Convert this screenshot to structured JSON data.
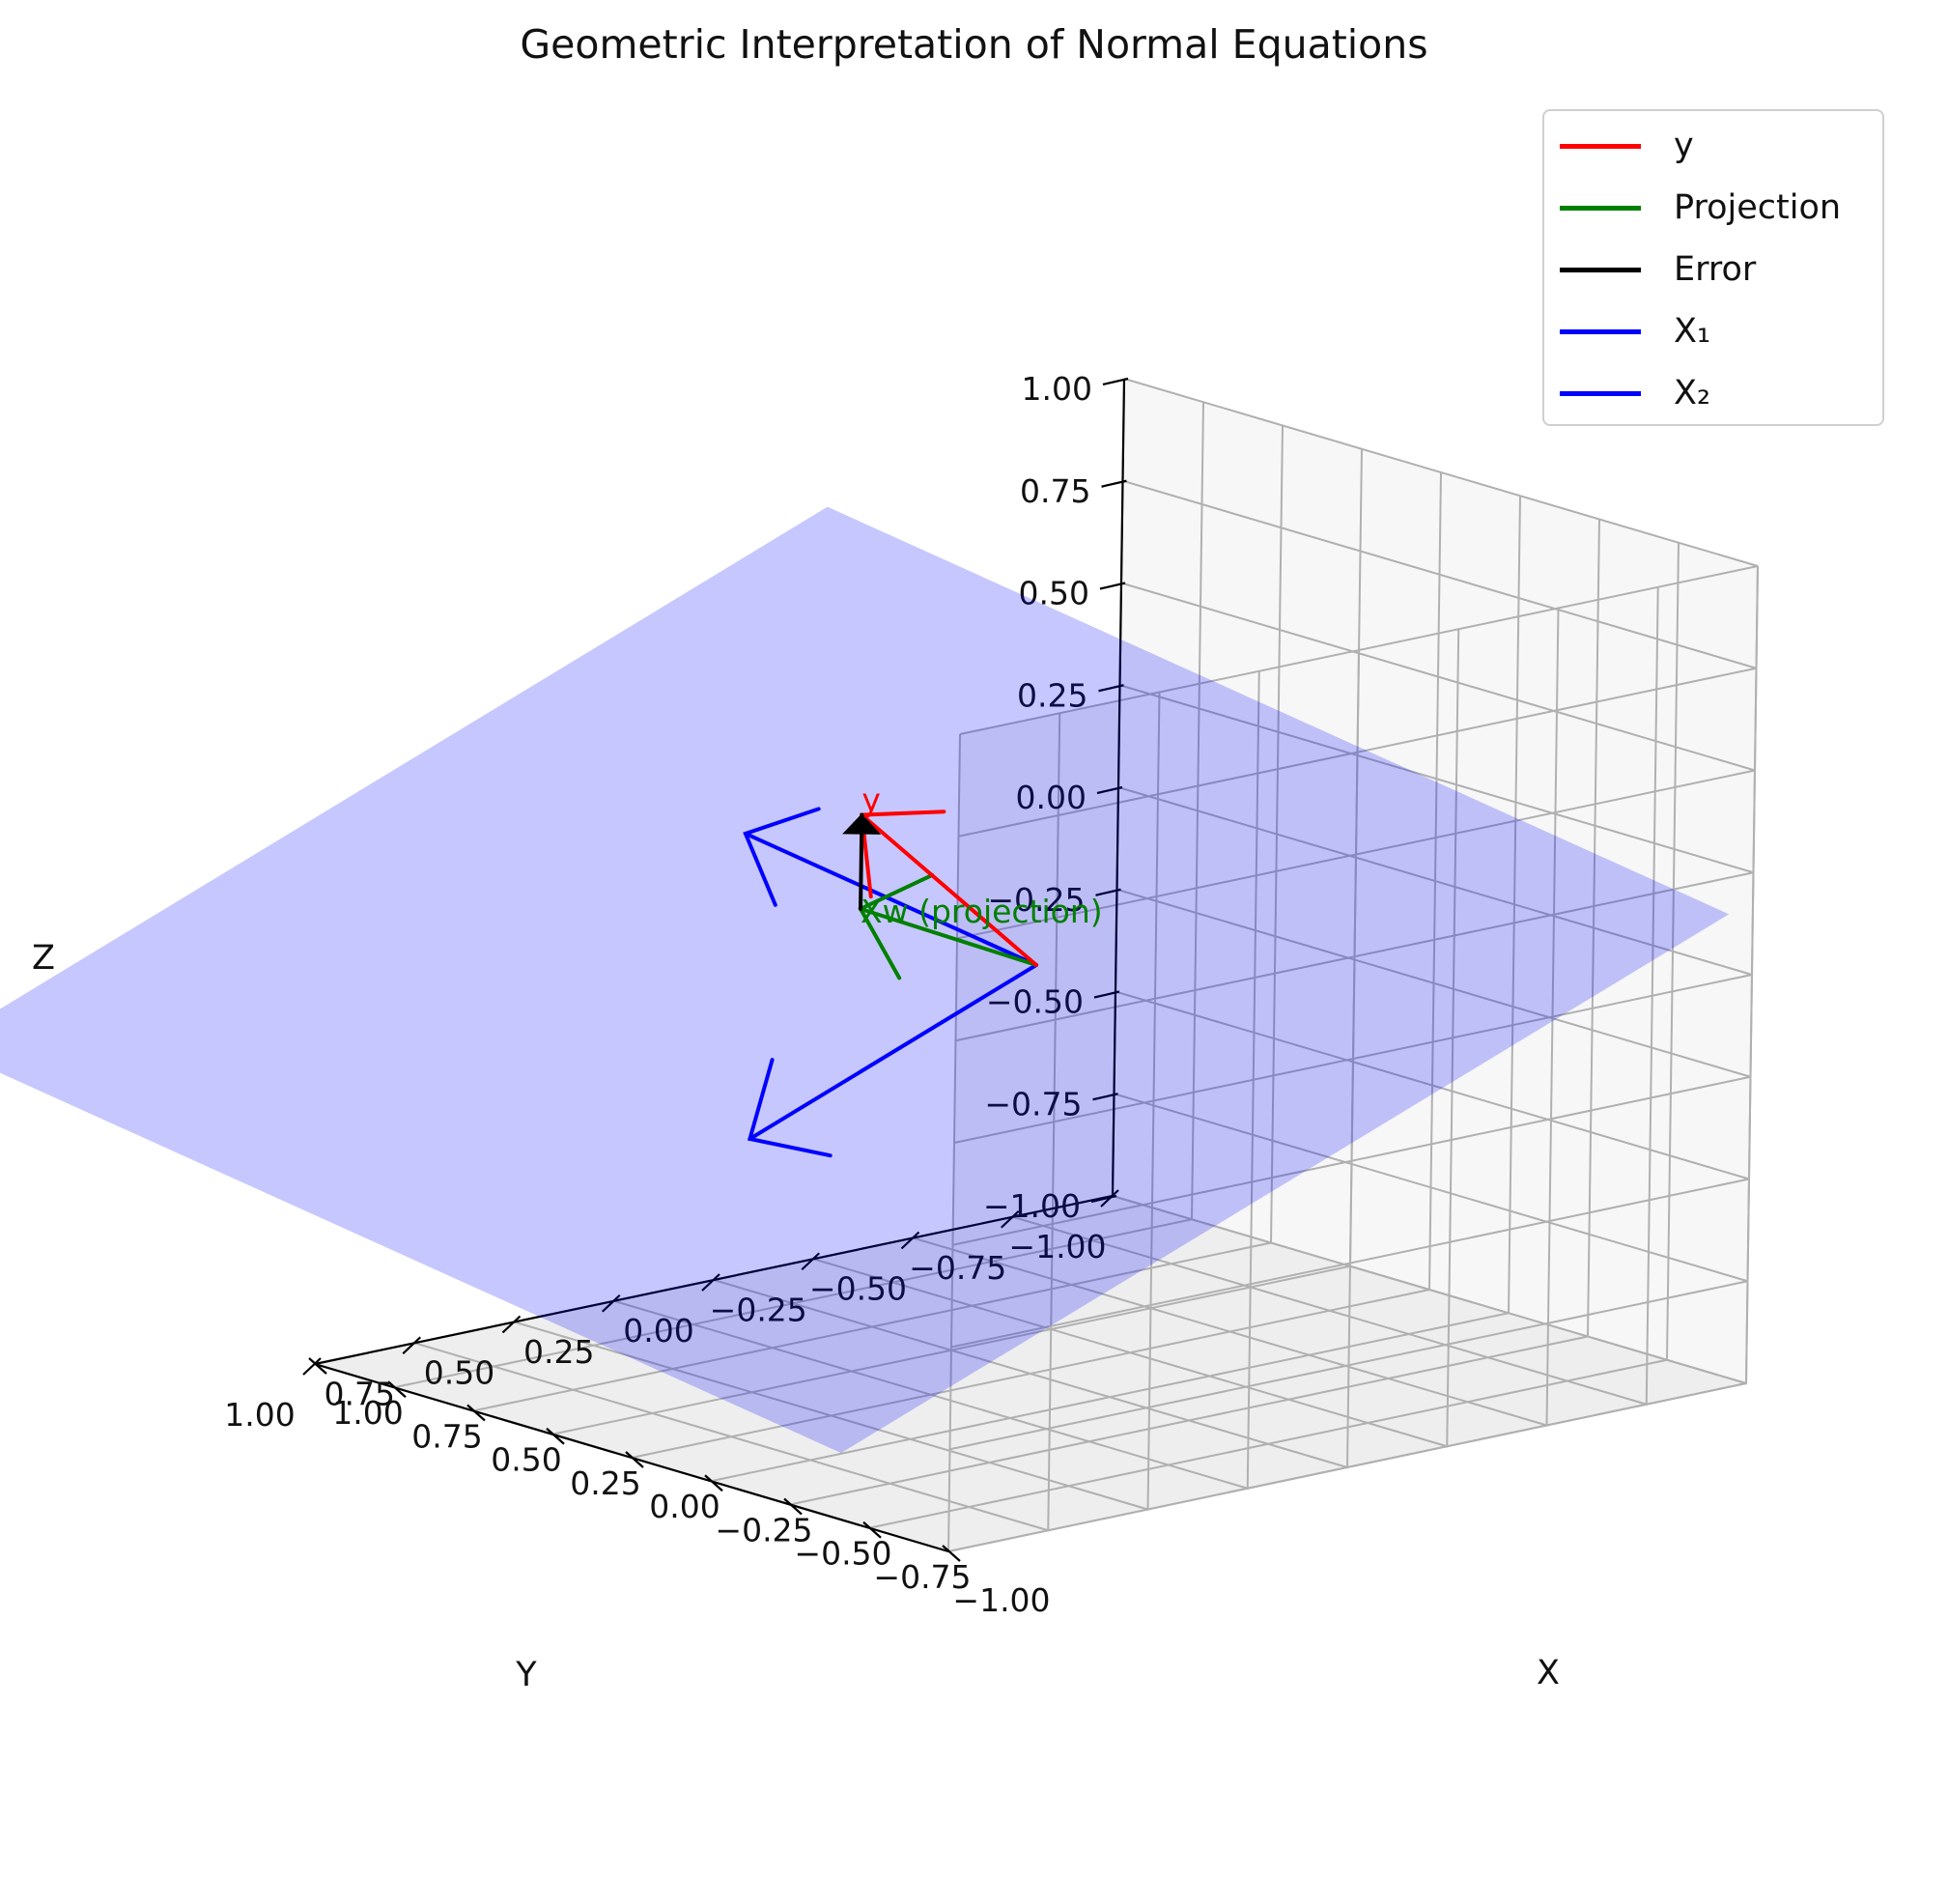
{
  "chart_data": {
    "type": "3d-line",
    "title": "Geometric Interpretation of Normal Equations",
    "xlabel": "X",
    "ylabel": "Y",
    "zlabel": "Z",
    "xlim": [
      -1,
      1
    ],
    "ylim": [
      -1,
      1
    ],
    "zlim": [
      -1,
      1
    ],
    "xticks": [
      "−1.00",
      "−0.75",
      "−0.50",
      "−0.25",
      "0.00",
      "0.25",
      "0.50",
      "0.75",
      "1.00"
    ],
    "yticks": [
      "−1.00",
      "−0.75",
      "−0.50",
      "−0.25",
      "0.00",
      "0.25",
      "0.50",
      "0.75",
      "1.00"
    ],
    "zticks": [
      "−1.00",
      "−0.75",
      "−0.50",
      "−0.25",
      "0.00",
      "0.25",
      "0.50",
      "0.75",
      "1.00"
    ],
    "grid": true,
    "legend_position": "top-right",
    "series": [
      {
        "name": "y",
        "color": "#ff0000",
        "start": [
          0,
          0,
          0
        ],
        "end": [
          0.53,
          0.02,
          0.25
        ]
      },
      {
        "name": "Projection",
        "color": "#008000",
        "start": [
          0,
          0,
          0
        ],
        "end": [
          0.53,
          0.02,
          0.02
        ]
      },
      {
        "name": "Error",
        "color": "#000000",
        "start": [
          0.53,
          0.02,
          0.02
        ],
        "end": [
          0.53,
          0.02,
          0.25
        ]
      },
      {
        "name": "X₁",
        "color": "#0000ff",
        "start": [
          0,
          0,
          0
        ],
        "end": [
          0.82,
          0.08,
          0.15
        ]
      },
      {
        "name": "X₂",
        "color": "#0000ff",
        "start": [
          0,
          0,
          0
        ],
        "end": [
          0.08,
          0.65,
          -0.31
        ]
      }
    ],
    "plane": {
      "color": "#0000ff",
      "opacity": 0.22
    },
    "annotations": [
      {
        "text": "y",
        "color": "#ff0000",
        "at": [
          0.53,
          0.02,
          0.25
        ]
      },
      {
        "text": "Xw (projection)",
        "color": "#008000",
        "at": [
          0.53,
          0.02,
          0.02
        ]
      }
    ]
  }
}
